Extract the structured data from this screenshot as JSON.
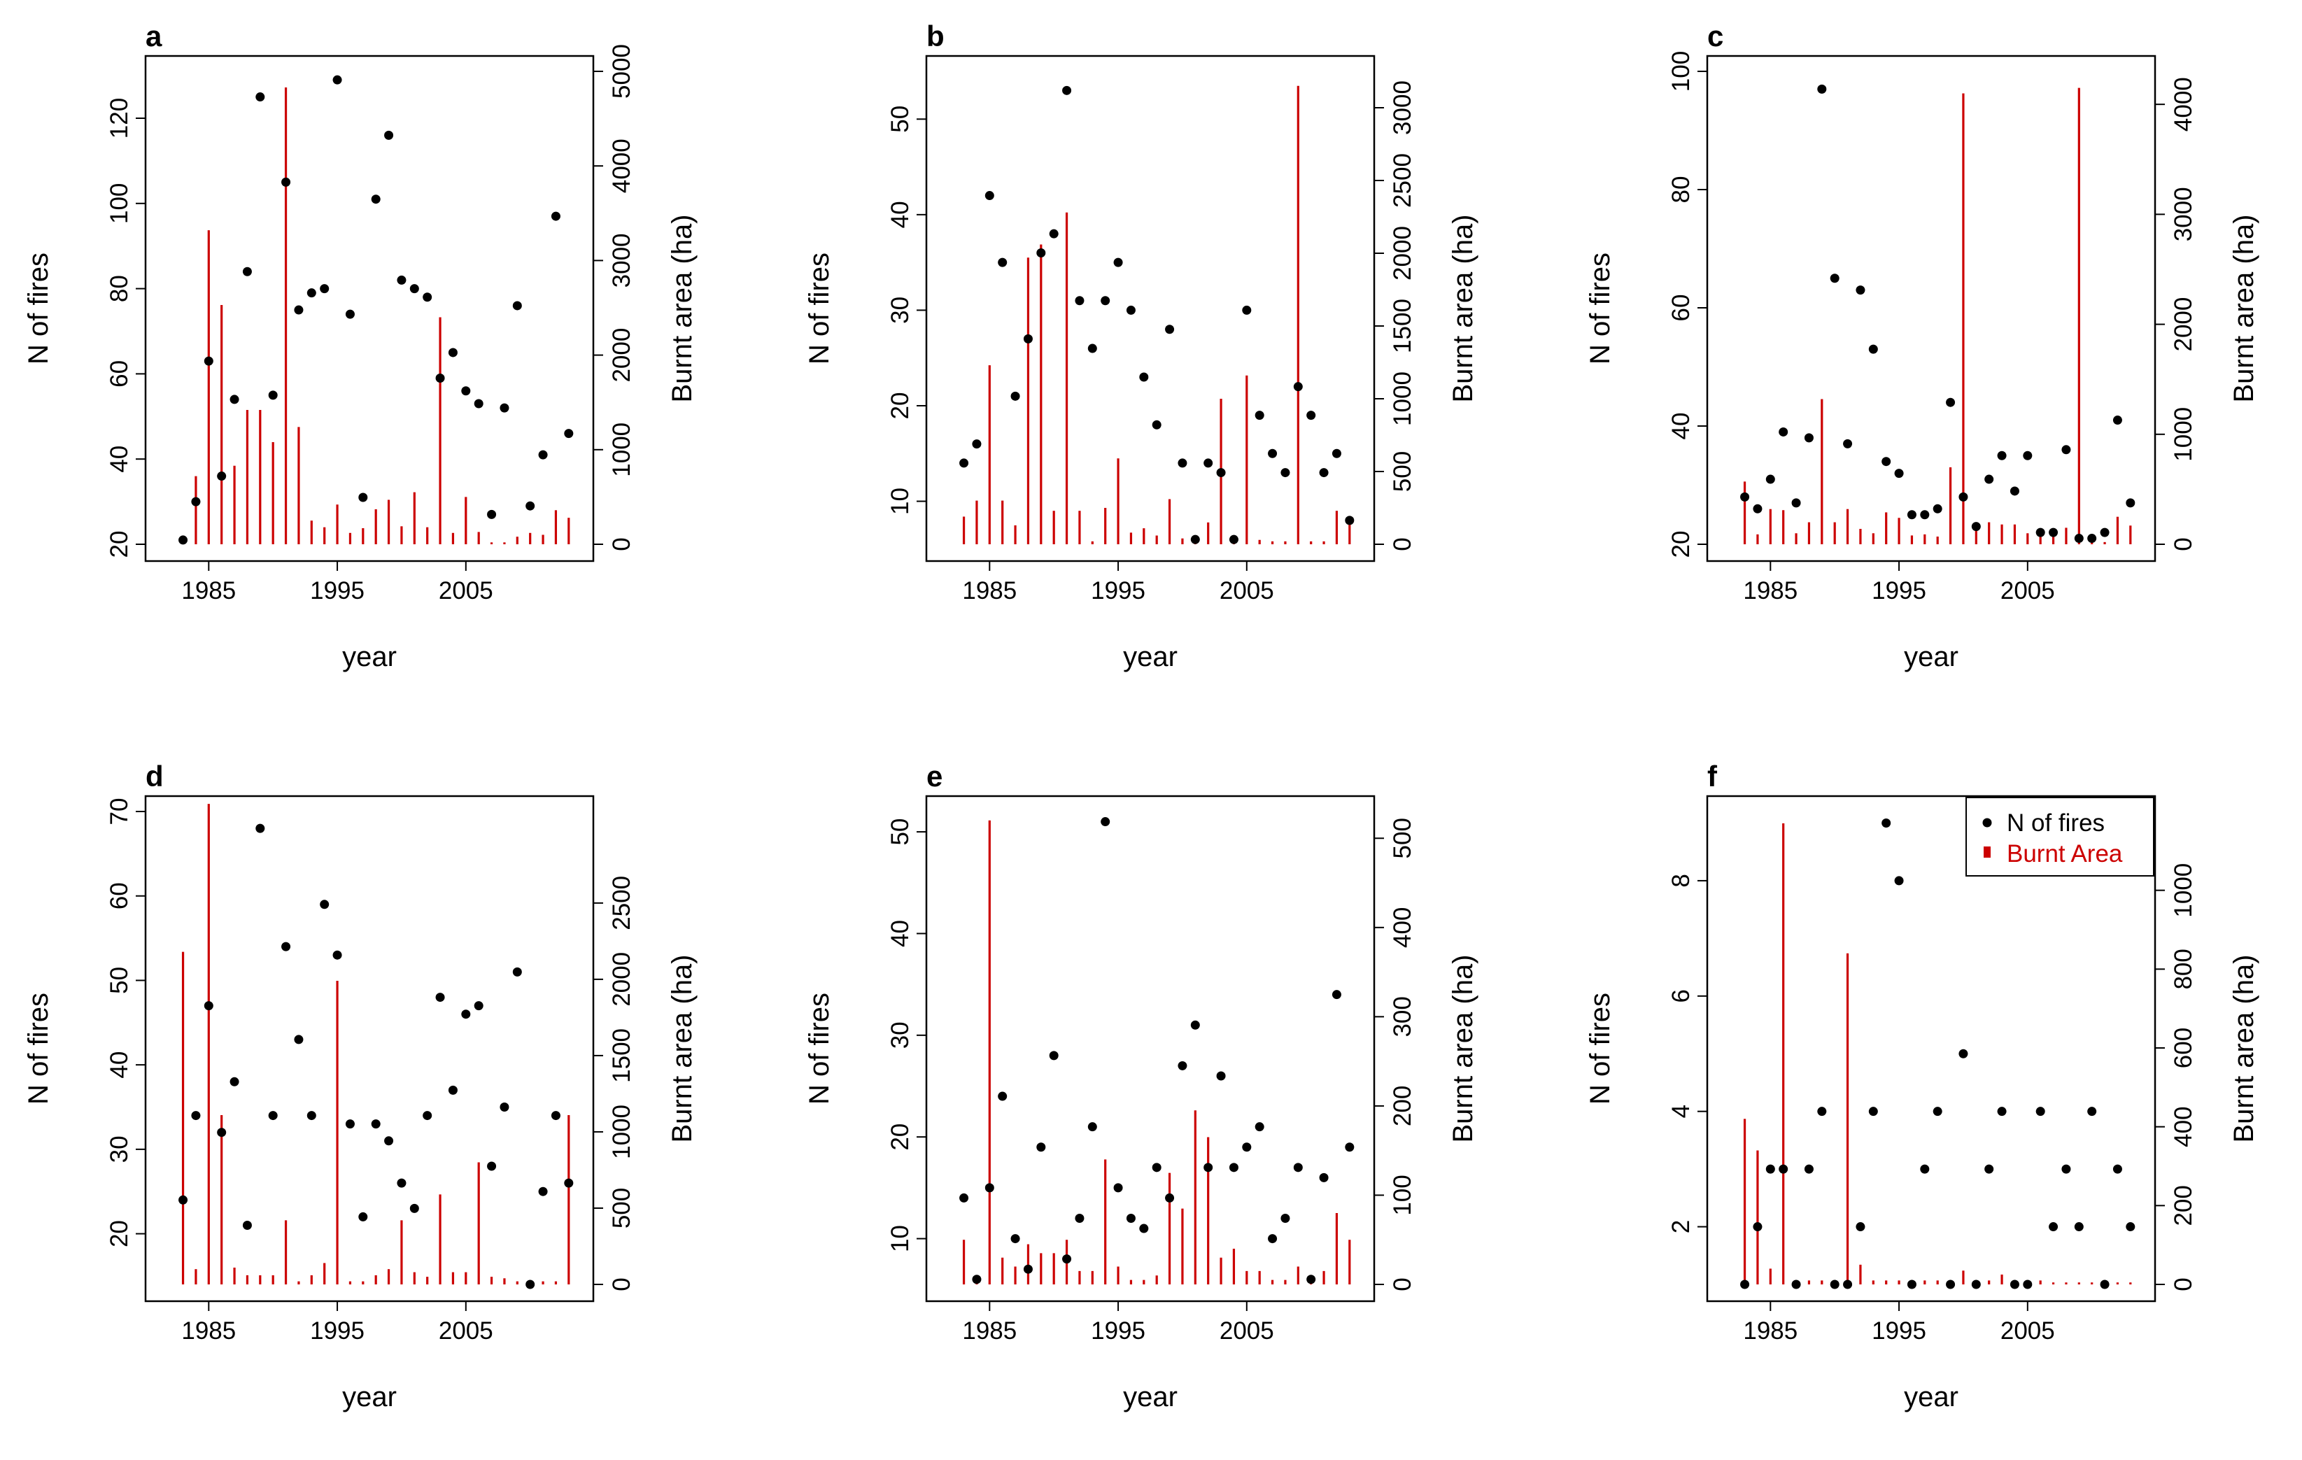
{
  "chart_data": [
    {
      "panel": "a",
      "type": "scatter+bar",
      "xlabel": "year",
      "ylabel_left": "N of fires",
      "ylabel_right": "Burnt area (ha)",
      "xticks": [
        1985,
        1995,
        2005
      ],
      "yticks_left": [
        20,
        40,
        60,
        80,
        100,
        120
      ],
      "yticks_right": [
        0,
        1000,
        2000,
        3000,
        4000,
        5000
      ],
      "xlim": [
        1981.5,
        2013.5
      ],
      "ylim_left": [
        20,
        131
      ],
      "ylim_right": [
        0,
        5000
      ],
      "years": [
        1983,
        1984,
        1985,
        1986,
        1987,
        1988,
        1989,
        1990,
        1991,
        1992,
        1993,
        1994,
        1995,
        1996,
        1997,
        1998,
        1999,
        2000,
        2001,
        2002,
        2003,
        2004,
        2005,
        2006,
        2007,
        2008,
        2009,
        2010,
        2011,
        2012,
        2013
      ],
      "n_fires": [
        21,
        30,
        63,
        36,
        54,
        84,
        125,
        55,
        105,
        75,
        79,
        80,
        129,
        74,
        31,
        101,
        116,
        82,
        80,
        78,
        59,
        65,
        56,
        53,
        27,
        52,
        76,
        29,
        41,
        97,
        46
      ],
      "burnt_area": [
        80,
        720,
        3320,
        2530,
        830,
        1420,
        1420,
        1080,
        4830,
        1240,
        250,
        180,
        420,
        120,
        170,
        370,
        470,
        190,
        550,
        180,
        2400,
        120,
        500,
        130,
        20,
        20,
        80,
        120,
        100,
        360,
        280
      ]
    },
    {
      "panel": "b",
      "type": "scatter+bar",
      "xlabel": "year",
      "ylabel_left": "N of fires",
      "ylabel_right": "Burnt area (ha)",
      "xticks": [
        1985,
        1995,
        2005
      ],
      "yticks_left": [
        10,
        20,
        30,
        40,
        50
      ],
      "yticks_right": [
        0,
        500,
        1000,
        1500,
        2000,
        2500,
        3000
      ],
      "xlim": [
        1981.5,
        2013.5
      ],
      "ylim_left": [
        5.5,
        55
      ],
      "ylim_right": [
        0,
        3250
      ],
      "years": [
        1983,
        1984,
        1985,
        1986,
        1987,
        1988,
        1989,
        1990,
        1991,
        1992,
        1993,
        1994,
        1995,
        1996,
        1997,
        1998,
        1999,
        2000,
        2001,
        2002,
        2003,
        2004,
        2005,
        2006,
        2007,
        2008,
        2009,
        2010,
        2011,
        2012,
        2013
      ],
      "n_fires": [
        14,
        16,
        42,
        35,
        21,
        27,
        36,
        38,
        53,
        31,
        26,
        31,
        35,
        30,
        23,
        18,
        28,
        14,
        6,
        14,
        13,
        6,
        30,
        19,
        15,
        13,
        22,
        19,
        13,
        15,
        8
      ],
      "burnt_area": [
        190,
        300,
        1230,
        300,
        130,
        1970,
        2060,
        230,
        2280,
        230,
        20,
        250,
        590,
        80,
        110,
        60,
        310,
        40,
        30,
        150,
        1000,
        20,
        1160,
        30,
        20,
        20,
        3150,
        20,
        20,
        230,
        140
      ]
    },
    {
      "panel": "c",
      "type": "scatter+bar",
      "xlabel": "year",
      "ylabel_left": "N of fires",
      "ylabel_right": "Burnt area (ha)",
      "xticks": [
        1985,
        1995,
        2005
      ],
      "yticks_left": [
        20,
        40,
        60,
        80,
        100
      ],
      "yticks_right": [
        0,
        1000,
        2000,
        3000,
        4000
      ],
      "xlim": [
        1981.5,
        2013.5
      ],
      "ylim_left": [
        20,
        100
      ],
      "ylim_right": [
        0,
        4300
      ],
      "years": [
        1983,
        1984,
        1985,
        1986,
        1987,
        1988,
        1989,
        1990,
        1991,
        1992,
        1993,
        1994,
        1995,
        1996,
        1997,
        1998,
        1999,
        2000,
        2001,
        2002,
        2003,
        2004,
        2005,
        2006,
        2007,
        2008,
        2009,
        2010,
        2011,
        2012,
        2013
      ],
      "n_fires": [
        28,
        26,
        31,
        39,
        27,
        38,
        97,
        65,
        37,
        63,
        53,
        34,
        32,
        25,
        25,
        26,
        44,
        28,
        23,
        31,
        35,
        29,
        35,
        22,
        22,
        36,
        21,
        21,
        22,
        41,
        27
      ],
      "burnt_area": [
        570,
        90,
        320,
        310,
        100,
        200,
        1320,
        200,
        320,
        140,
        100,
        290,
        240,
        80,
        90,
        70,
        700,
        4100,
        200,
        200,
        180,
        180,
        100,
        120,
        120,
        150,
        4150,
        20,
        20,
        250,
        170
      ]
    },
    {
      "panel": "d",
      "type": "scatter+bar",
      "xlabel": "year",
      "ylabel_left": "N of fires",
      "ylabel_right": "Burnt area (ha)",
      "xticks": [
        1985,
        1995,
        2005
      ],
      "yticks_left": [
        20,
        30,
        40,
        50,
        60,
        70
      ],
      "yticks_right": [
        0,
        500,
        1000,
        1500,
        2000,
        2500
      ],
      "xlim": [
        1981.5,
        2013.5
      ],
      "ylim_left": [
        14,
        70
      ],
      "ylim_right": [
        0,
        3100
      ],
      "years": [
        1983,
        1984,
        1985,
        1986,
        1987,
        1988,
        1989,
        1990,
        1991,
        1992,
        1993,
        1994,
        1995,
        1996,
        1997,
        1998,
        1999,
        2000,
        2001,
        2002,
        2003,
        2004,
        2005,
        2006,
        2007,
        2008,
        2009,
        2010,
        2011,
        2012,
        2013
      ],
      "n_fires": [
        24,
        34,
        47,
        32,
        38,
        21,
        68,
        34,
        54,
        43,
        34,
        59,
        53,
        33,
        22,
        33,
        31,
        26,
        23,
        34,
        48,
        37,
        46,
        47,
        28,
        35,
        51,
        14,
        25,
        34,
        26
      ],
      "burnt_area": [
        2180,
        100,
        3150,
        1110,
        110,
        60,
        60,
        60,
        420,
        20,
        60,
        140,
        1990,
        20,
        20,
        60,
        100,
        420,
        80,
        50,
        590,
        80,
        80,
        800,
        50,
        40,
        20,
        20,
        20,
        20,
        1110
      ]
    },
    {
      "panel": "e",
      "type": "scatter+bar",
      "xlabel": "year",
      "ylabel_left": "N of fires",
      "ylabel_right": "Burnt area (ha)",
      "xticks": [
        1985,
        1995,
        2005
      ],
      "yticks_left": [
        10,
        20,
        30,
        40,
        50
      ],
      "yticks_right": [
        0,
        100,
        200,
        300,
        400,
        500
      ],
      "xlim": [
        1981.5,
        2013.5
      ],
      "ylim_left": [
        5.5,
        52
      ],
      "ylim_right": [
        0,
        530
      ],
      "years": [
        1983,
        1984,
        1985,
        1986,
        1987,
        1988,
        1989,
        1990,
        1991,
        1992,
        1993,
        1994,
        1995,
        1996,
        1997,
        1998,
        1999,
        2000,
        2001,
        2002,
        2003,
        2004,
        2005,
        2006,
        2007,
        2008,
        2009,
        2010,
        2011,
        2012,
        2013
      ],
      "n_fires": [
        14,
        6,
        15,
        24,
        10,
        7,
        19,
        28,
        8,
        12,
        21,
        51,
        15,
        12,
        11,
        17,
        14,
        27,
        31,
        17,
        26,
        17,
        19,
        21,
        10,
        12,
        17,
        6,
        16,
        34,
        19
      ],
      "burnt_area": [
        50,
        10,
        520,
        30,
        20,
        45,
        35,
        35,
        50,
        15,
        15,
        140,
        20,
        5,
        5,
        10,
        125,
        85,
        195,
        165,
        30,
        40,
        15,
        15,
        5,
        5,
        20,
        10,
        15,
        80,
        50
      ]
    },
    {
      "panel": "f",
      "type": "scatter+bar",
      "xlabel": "year",
      "ylabel_left": "N of fires",
      "ylabel_right": "Burnt area (ha)",
      "xticks": [
        1985,
        1995,
        2005
      ],
      "yticks_left": [
        2,
        4,
        6,
        8
      ],
      "yticks_right": [
        0,
        200,
        400,
        600,
        800,
        1000
      ],
      "xlim": [
        1981.5,
        2013.5
      ],
      "ylim_left": [
        1,
        9.2
      ],
      "ylim_right": [
        0,
        1200
      ],
      "years": [
        1983,
        1984,
        1985,
        1986,
        1987,
        1988,
        1989,
        1990,
        1991,
        1992,
        1993,
        1994,
        1995,
        1996,
        1997,
        1998,
        1999,
        2000,
        2001,
        2002,
        2003,
        2004,
        2005,
        2006,
        2007,
        2008,
        2009,
        2010,
        2011,
        2012,
        2013
      ],
      "n_fires": [
        1,
        2,
        3,
        3,
        1,
        3,
        4,
        1,
        1,
        2,
        4,
        9,
        8,
        1,
        3,
        4,
        1,
        5,
        1,
        3,
        4,
        1,
        1,
        4,
        2,
        3,
        2,
        4,
        1,
        3,
        2
      ],
      "burnt_area": [
        420,
        340,
        40,
        1170,
        10,
        10,
        10,
        10,
        840,
        50,
        10,
        10,
        10,
        10,
        10,
        10,
        10,
        35,
        10,
        10,
        25,
        10,
        10,
        10,
        5,
        5,
        5,
        5,
        5,
        5,
        5
      ],
      "legend": {
        "entries": [
          "N of fires",
          "Burnt Area"
        ],
        "colors": [
          "#000000",
          "#cc0000"
        ],
        "position": "top-right"
      }
    }
  ],
  "colors": {
    "points": "#000000",
    "bars": "#cc0000",
    "axes": "#000000"
  }
}
